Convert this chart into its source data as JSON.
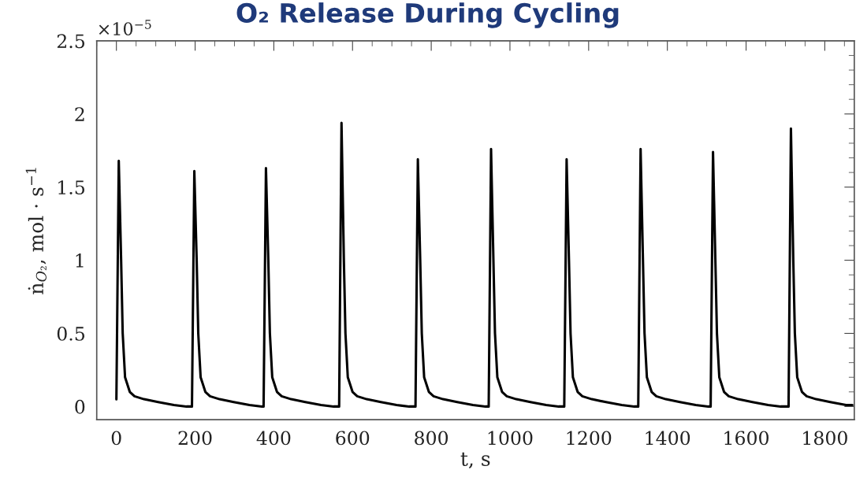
{
  "chart_data": {
    "type": "line",
    "title": "O₂ Release During Cycling",
    "xlabel": "t, s",
    "ylabel": "ṅ$_{O₂}$, mol · s$^{−1}$",
    "annotations": [
      "×10$^{−5}$"
    ],
    "x": [
      0,
      6,
      12,
      16,
      22,
      34,
      46,
      70,
      106,
      146,
      178,
      192,
      198,
      204,
      208,
      214,
      226,
      238,
      262,
      298,
      338,
      370,
      374,
      380,
      386,
      390,
      396,
      408,
      420,
      444,
      480,
      520,
      552,
      566,
      572,
      578,
      582,
      588,
      600,
      612,
      636,
      672,
      712,
      744,
      760,
      766,
      772,
      776,
      782,
      794,
      806,
      830,
      866,
      906,
      938,
      946,
      952,
      958,
      962,
      968,
      980,
      992,
      1016,
      1052,
      1092,
      1124,
      1138,
      1144,
      1150,
      1154,
      1160,
      1172,
      1184,
      1208,
      1244,
      1284,
      1316,
      1326,
      1332,
      1338,
      1342,
      1348,
      1360,
      1372,
      1396,
      1432,
      1472,
      1504,
      1510,
      1516,
      1522,
      1526,
      1532,
      1544,
      1556,
      1580,
      1616,
      1656,
      1688,
      1708,
      1714,
      1720,
      1724,
      1730,
      1742,
      1754,
      1778,
      1814,
      1854,
      1870
    ],
    "series": [
      {
        "color": "#000000",
        "values": [
          0.05,
          1.68,
          1.0,
          0.5,
          0.2,
          0.1,
          0.07,
          0.05,
          0.03,
          0.01,
          0.0,
          0.0,
          1.61,
          1.0,
          0.5,
          0.2,
          0.1,
          0.07,
          0.05,
          0.03,
          0.01,
          0.0,
          0.0,
          1.63,
          1.0,
          0.5,
          0.2,
          0.1,
          0.07,
          0.05,
          0.03,
          0.01,
          0.0,
          0.0,
          1.94,
          1.0,
          0.5,
          0.2,
          0.1,
          0.07,
          0.05,
          0.03,
          0.01,
          0.0,
          0.0,
          1.69,
          1.0,
          0.5,
          0.2,
          0.1,
          0.07,
          0.05,
          0.03,
          0.01,
          0.0,
          0.0,
          1.76,
          1.0,
          0.5,
          0.2,
          0.1,
          0.07,
          0.05,
          0.03,
          0.01,
          0.0,
          0.0,
          1.69,
          1.0,
          0.5,
          0.2,
          0.1,
          0.07,
          0.05,
          0.03,
          0.01,
          0.0,
          0.0,
          1.76,
          1.0,
          0.5,
          0.2,
          0.1,
          0.07,
          0.05,
          0.03,
          0.01,
          0.0,
          0.0,
          1.74,
          1.0,
          0.5,
          0.2,
          0.1,
          0.07,
          0.05,
          0.03,
          0.01,
          0.0,
          0.0,
          1.9,
          1.0,
          0.5,
          0.2,
          0.1,
          0.07,
          0.05,
          0.03,
          0.01,
          0.01
        ]
      }
    ],
    "xlim": [
      -50,
      1875
    ],
    "ylim": [
      -0.09,
      2.5
    ],
    "xticks": [
      0,
      200,
      400,
      600,
      800,
      1000,
      1200,
      1400,
      1600,
      1800
    ],
    "yticks": [
      0,
      0.5,
      1,
      1.5,
      2,
      2.5
    ],
    "grid": false,
    "marker": "none",
    "line_style": "solid"
  }
}
